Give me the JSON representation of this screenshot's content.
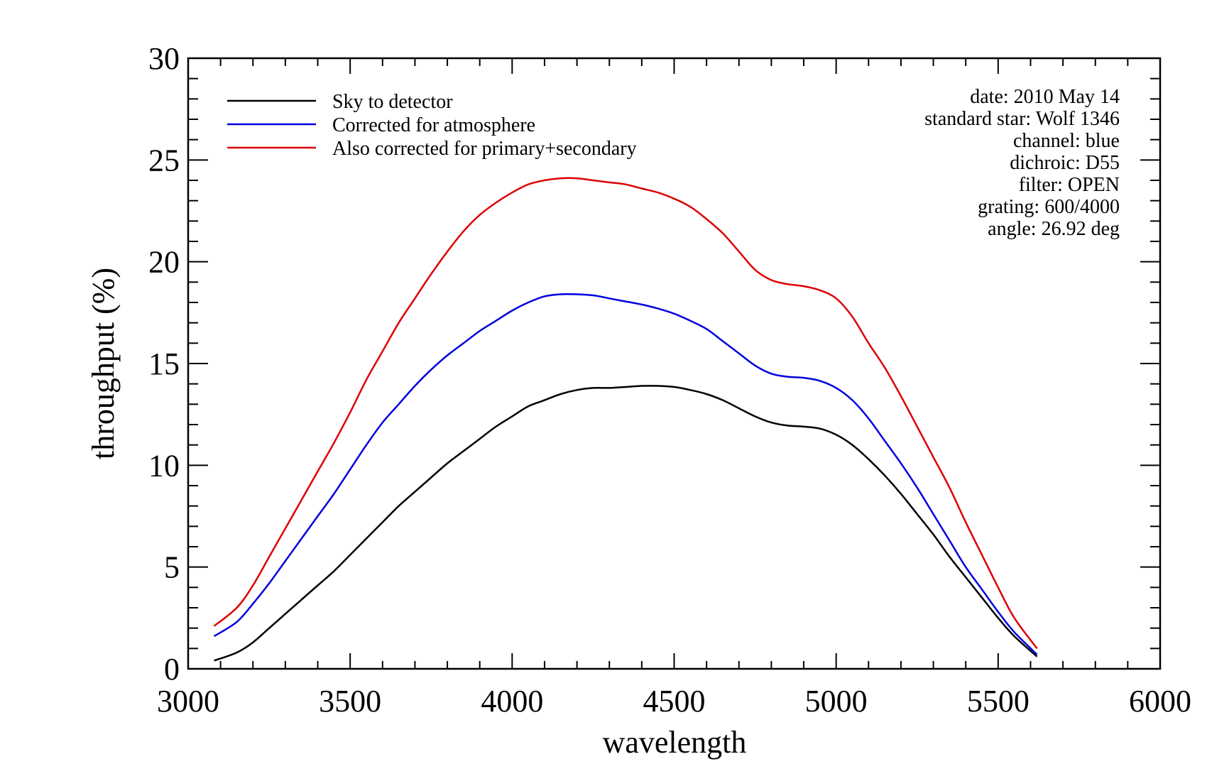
{
  "chart_data": {
    "type": "line",
    "xlabel": "wavelength",
    "ylabel": "throughput (%)",
    "xlim": [
      3000,
      6000
    ],
    "ylim": [
      0,
      30
    ],
    "x_ticks": [
      3000,
      3500,
      4000,
      4500,
      5000,
      5500,
      6000
    ],
    "y_ticks": [
      0,
      5,
      10,
      15,
      20,
      25,
      30
    ],
    "legend_position": "top-left",
    "grid": false,
    "info_position": "top-right",
    "info": [
      "date: 2010 May 14",
      "standard star: Wolf 1346",
      "channel: blue",
      "dichroic: D55",
      "filter: OPEN",
      "grating: 600/4000",
      "angle: 26.92 deg"
    ],
    "series": [
      {
        "name": "Sky to detector",
        "color": "#000000",
        "x": [
          3080,
          3150,
          3200,
          3250,
          3300,
          3350,
          3400,
          3450,
          3500,
          3550,
          3600,
          3650,
          3700,
          3750,
          3800,
          3850,
          3900,
          3950,
          4000,
          4050,
          4100,
          4150,
          4200,
          4250,
          4300,
          4350,
          4400,
          4450,
          4500,
          4550,
          4600,
          4650,
          4700,
          4750,
          4800,
          4850,
          4900,
          4950,
          5000,
          5050,
          5100,
          5150,
          5200,
          5250,
          5300,
          5350,
          5400,
          5450,
          5500,
          5550,
          5620
        ],
        "y": [
          0.4,
          0.8,
          1.3,
          2.0,
          2.7,
          3.4,
          4.1,
          4.8,
          5.6,
          6.4,
          7.2,
          8.0,
          8.7,
          9.4,
          10.1,
          10.7,
          11.3,
          11.9,
          12.4,
          12.9,
          13.2,
          13.5,
          13.7,
          13.8,
          13.8,
          13.85,
          13.9,
          13.9,
          13.85,
          13.7,
          13.5,
          13.2,
          12.8,
          12.4,
          12.1,
          11.95,
          11.9,
          11.8,
          11.5,
          11.0,
          10.3,
          9.5,
          8.6,
          7.6,
          6.6,
          5.5,
          4.5,
          3.5,
          2.5,
          1.6,
          0.6
        ]
      },
      {
        "name": "Corrected for atmosphere",
        "color": "#0000dd",
        "x": [
          3080,
          3150,
          3200,
          3250,
          3300,
          3350,
          3400,
          3450,
          3500,
          3550,
          3600,
          3650,
          3700,
          3750,
          3800,
          3850,
          3900,
          3950,
          4000,
          4050,
          4100,
          4150,
          4200,
          4250,
          4300,
          4350,
          4400,
          4450,
          4500,
          4550,
          4600,
          4650,
          4700,
          4750,
          4800,
          4850,
          4900,
          4950,
          5000,
          5050,
          5100,
          5150,
          5200,
          5250,
          5300,
          5350,
          5400,
          5450,
          5500,
          5550,
          5620
        ],
        "y": [
          1.6,
          2.3,
          3.2,
          4.2,
          5.3,
          6.4,
          7.5,
          8.6,
          9.8,
          11.0,
          12.1,
          13.0,
          13.9,
          14.7,
          15.4,
          16.0,
          16.6,
          17.1,
          17.6,
          18.0,
          18.3,
          18.4,
          18.4,
          18.35,
          18.2,
          18.05,
          17.9,
          17.7,
          17.45,
          17.1,
          16.7,
          16.1,
          15.5,
          14.9,
          14.5,
          14.35,
          14.3,
          14.15,
          13.8,
          13.2,
          12.3,
          11.2,
          10.1,
          8.9,
          7.6,
          6.3,
          5.0,
          3.9,
          2.8,
          1.8,
          0.7
        ]
      },
      {
        "name": "Also corrected for primary+secondary",
        "color": "#dd0000",
        "x": [
          3080,
          3150,
          3200,
          3250,
          3300,
          3350,
          3400,
          3450,
          3500,
          3550,
          3600,
          3650,
          3700,
          3750,
          3800,
          3850,
          3900,
          3950,
          4000,
          4050,
          4100,
          4150,
          4200,
          4250,
          4300,
          4350,
          4400,
          4450,
          4500,
          4550,
          4600,
          4650,
          4700,
          4750,
          4800,
          4850,
          4900,
          4950,
          5000,
          5050,
          5100,
          5150,
          5200,
          5250,
          5300,
          5350,
          5400,
          5450,
          5500,
          5550,
          5620
        ],
        "y": [
          2.1,
          3.0,
          4.1,
          5.5,
          6.9,
          8.3,
          9.7,
          11.1,
          12.6,
          14.2,
          15.6,
          17.0,
          18.2,
          19.4,
          20.5,
          21.5,
          22.3,
          22.9,
          23.4,
          23.8,
          24.0,
          24.1,
          24.1,
          24.0,
          23.9,
          23.8,
          23.6,
          23.4,
          23.1,
          22.7,
          22.1,
          21.4,
          20.5,
          19.6,
          19.1,
          18.9,
          18.8,
          18.6,
          18.2,
          17.3,
          16.0,
          14.8,
          13.4,
          11.9,
          10.4,
          8.9,
          7.2,
          5.6,
          4.0,
          2.5,
          1.0
        ]
      }
    ]
  }
}
